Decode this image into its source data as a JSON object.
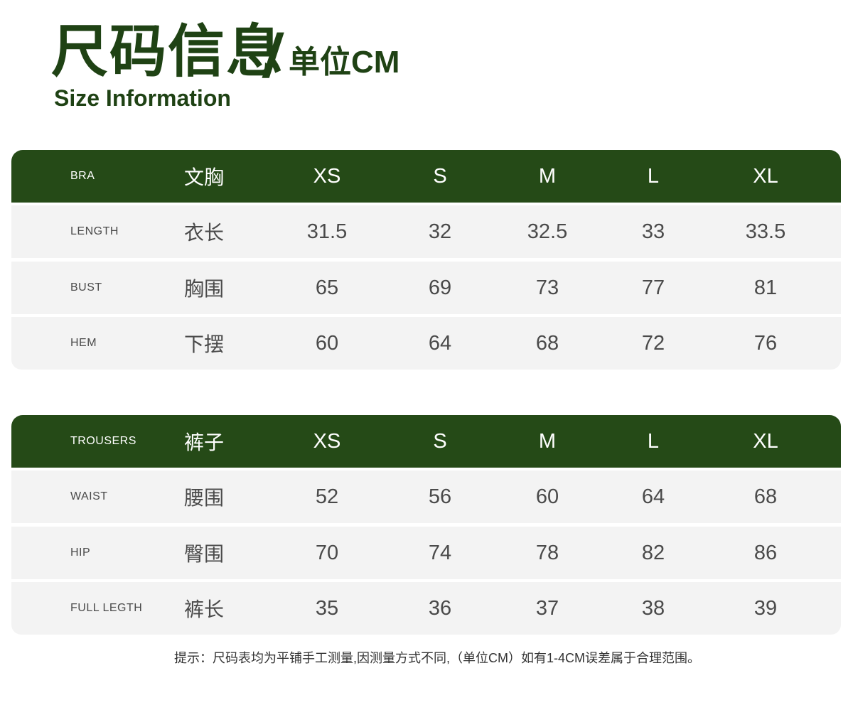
{
  "title": {
    "cn": "尺码信息",
    "slash": "/",
    "unit": "单位CM",
    "en": "Size Information"
  },
  "colors": {
    "header_bg": "#254a17",
    "title": "#1f4214",
    "row_bg": "#f3f3f3"
  },
  "tables": [
    {
      "header": {
        "en": "BRA",
        "cn": "文胸",
        "sizes": [
          "XS",
          "S",
          "M",
          "L",
          "XL"
        ]
      },
      "rows": [
        {
          "en": "LENGTH",
          "cn": "衣长",
          "values": [
            "31.5",
            "32",
            "32.5",
            "33",
            "33.5"
          ]
        },
        {
          "en": "BUST",
          "cn": "胸围",
          "values": [
            "65",
            "69",
            "73",
            "77",
            "81"
          ]
        },
        {
          "en": "HEM",
          "cn": "下摆",
          "values": [
            "60",
            "64",
            "68",
            "72",
            "76"
          ]
        }
      ]
    },
    {
      "header": {
        "en": "TROUSERS",
        "cn": "裤子",
        "sizes": [
          "XS",
          "S",
          "M",
          "L",
          "XL"
        ]
      },
      "rows": [
        {
          "en": "WAIST",
          "cn": "腰围",
          "values": [
            "52",
            "56",
            "60",
            "64",
            "68"
          ]
        },
        {
          "en": "HIP",
          "cn": "臀围",
          "values": [
            "70",
            "74",
            "78",
            "82",
            "86"
          ]
        },
        {
          "en": "FULL LEGTH",
          "cn": "裤长",
          "values": [
            "35",
            "36",
            "37",
            "38",
            "39"
          ]
        }
      ]
    }
  ],
  "note": "提示：尺码表均为平铺手工测量,因测量方式不同,（单位CM）如有1-4CM误差属于合理范围。"
}
